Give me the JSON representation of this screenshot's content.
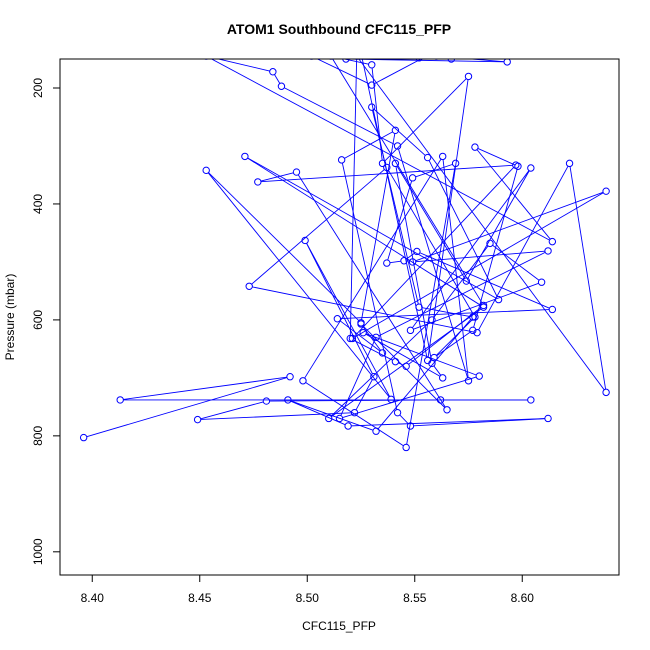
{
  "chart_data": {
    "type": "line",
    "title": "ATOM1 Southbound CFC115_PFP",
    "xlabel": "CFC115_PFP",
    "ylabel": "Pressure (mbar)",
    "xlim": [
      8.385,
      8.645
    ],
    "ylim": [
      1040,
      150
    ],
    "y_reversed": true,
    "xticks": [
      "8.40",
      "8.45",
      "8.50",
      "8.55",
      "8.60"
    ],
    "yticks": [
      "200",
      "400",
      "600",
      "800",
      "1000"
    ],
    "grid": false,
    "series": [
      {
        "color": "#0000ff",
        "marker": "open-circle",
        "x": [
          8.396,
          8.492,
          8.413,
          8.604,
          8.562,
          8.481,
          8.449,
          8.522,
          8.531,
          8.499,
          8.539,
          8.453,
          8.525,
          8.541,
          8.516,
          8.542,
          8.548,
          8.612,
          8.519,
          8.491,
          8.532,
          8.577,
          8.552,
          8.53,
          8.556,
          8.589,
          8.471,
          8.582,
          8.51,
          8.558,
          8.585,
          8.609,
          8.548,
          8.604,
          8.574,
          8.541,
          8.558,
          8.563,
          8.526,
          8.58,
          8.515,
          8.532,
          8.612,
          8.549,
          8.639,
          8.521,
          8.597,
          8.477,
          8.495,
          8.565,
          8.525,
          8.535,
          8.514,
          8.614,
          8.551,
          8.545,
          8.537,
          8.549,
          8.569,
          8.546,
          8.498,
          8.563,
          8.575,
          8.542,
          8.488,
          8.484,
          8.453,
          8.614,
          8.578,
          8.598,
          8.577,
          8.559,
          8.578,
          8.537,
          8.473,
          8.579,
          8.622,
          8.639,
          8.523,
          8.52,
          8.541,
          8.546,
          8.582,
          8.511,
          8.53,
          8.535,
          8.575,
          8.556,
          8.525,
          8.567,
          8.552,
          8.56,
          8.593,
          8.518,
          8.502,
          8.53,
          8.558
        ],
        "y": [
          803,
          698,
          738,
          738,
          738,
          740,
          772,
          760,
          698,
          463,
          737,
          342,
          605,
          273,
          324,
          760,
          783,
          770,
          783,
          738,
          792,
          595,
          578,
          233,
          320,
          565,
          318,
          578,
          770,
          600,
          468,
          535,
          618,
          338,
          533,
          330,
          675,
          700,
          622,
          697,
          770,
          630,
          481,
          500,
          378,
          632,
          333,
          362,
          345,
          755,
          607,
          657,
          598,
          582,
          482,
          498,
          502,
          355,
          330,
          820,
          705,
          318,
          705,
          300,
          197,
          172,
          145,
          465,
          302,
          335,
          618,
          665,
          595,
          337,
          542,
          622,
          330,
          725,
          145,
          632,
          672,
          680,
          575,
          145,
          160,
          330,
          180,
          670,
          140,
          150,
          148,
          145,
          155,
          150,
          145,
          195,
          140
        ]
      }
    ]
  }
}
